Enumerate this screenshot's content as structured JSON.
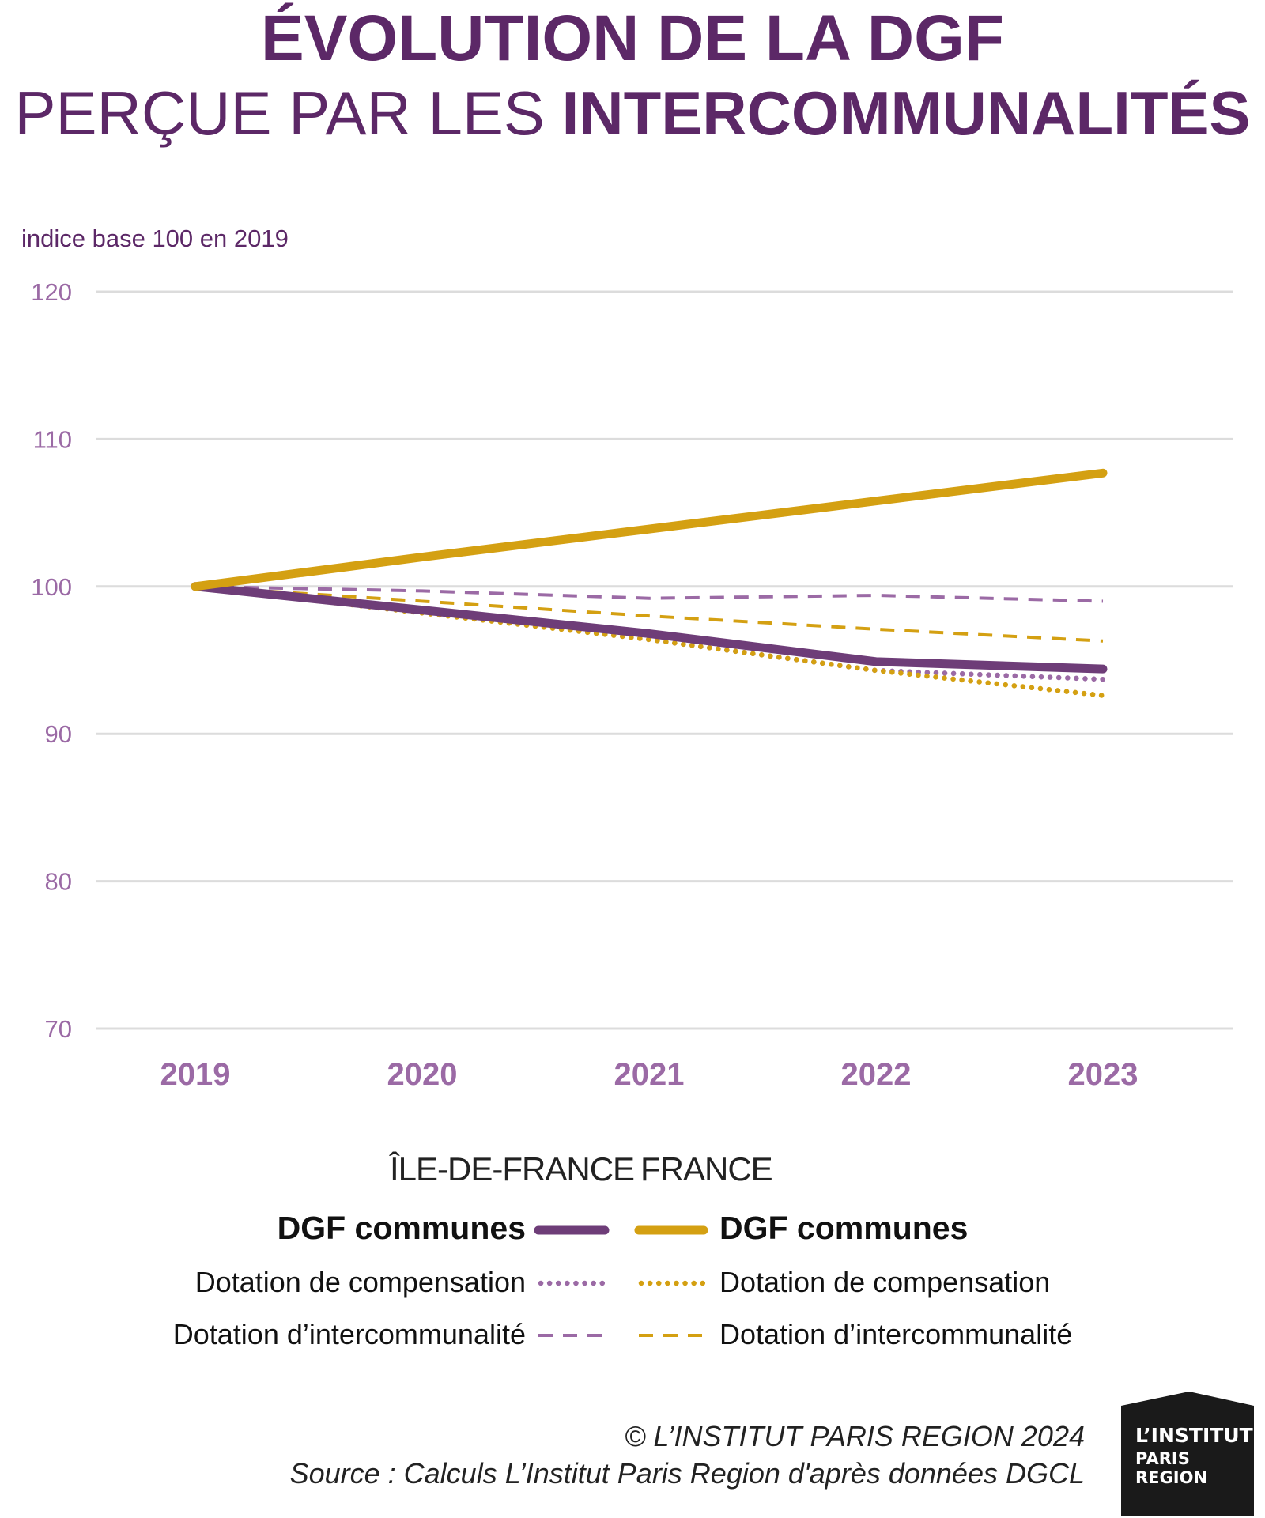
{
  "title": {
    "line1": "ÉVOLUTION DE LA DGF",
    "line2_regular": "PERÇUE PAR LES ",
    "line2_bold": "INTERCOMMUNALITÉS"
  },
  "chart_data": {
    "type": "line",
    "ylabel": "indice base 100 en 2019",
    "ylim": [
      70,
      120
    ],
    "yticks": [
      70,
      80,
      90,
      100,
      110,
      120
    ],
    "x": [
      "2019",
      "2020",
      "2021",
      "2022",
      "2023"
    ],
    "grid": true,
    "legend_placement": "bottom",
    "series": [
      {
        "name": "DGF communes",
        "group": "ÎLE-DE-FRANCE",
        "color": "#6e3d78",
        "style": "solid",
        "values": [
          100,
          98.4,
          96.8,
          94.9,
          94.4
        ]
      },
      {
        "name": "Dotation de compensation",
        "group": "ÎLE-DE-FRANCE",
        "color": "#9b6aa5",
        "style": "dotted",
        "values": [
          100,
          98.3,
          96.4,
          94.3,
          93.7
        ]
      },
      {
        "name": "Dotation d’intercommunalité",
        "group": "ÎLE-DE-FRANCE",
        "color": "#9b6aa5",
        "style": "dashed",
        "values": [
          100,
          99.7,
          99.2,
          99.4,
          99.0
        ]
      },
      {
        "name": "DGF communes",
        "group": "FRANCE",
        "color": "#d4a012",
        "style": "solid",
        "values": [
          100,
          102.0,
          103.9,
          105.8,
          107.7
        ]
      },
      {
        "name": "Dotation de compensation",
        "group": "FRANCE",
        "color": "#d4a012",
        "style": "dotted",
        "values": [
          100,
          98.2,
          96.4,
          94.3,
          92.6
        ]
      },
      {
        "name": "Dotation d’intercommunalité",
        "group": "FRANCE",
        "color": "#d4a012",
        "style": "dashed",
        "values": [
          100,
          99.0,
          98.0,
          97.1,
          96.3
        ]
      }
    ]
  },
  "legend": {
    "left_header": "ÎLE-DE-FRANCE",
    "right_header": "FRANCE",
    "rows": [
      "DGF communes",
      "Dotation de compensation",
      "Dotation d’intercommunalité"
    ]
  },
  "credits": {
    "copyright": "© L’INSTITUT PARIS REGION 2024",
    "source": "Source : Calculs L’Institut Paris Region d'après données DGCL"
  },
  "logo": {
    "line1": "L’INSTITUT",
    "line2": "PARIS",
    "line3": "REGION"
  },
  "colors": {
    "idf": "#6e3d78",
    "idf_light": "#9b6aa5",
    "france": "#d4a012",
    "title": "#5c2867",
    "tick": "#9b6aa5",
    "grid": "#dcdcdc"
  }
}
